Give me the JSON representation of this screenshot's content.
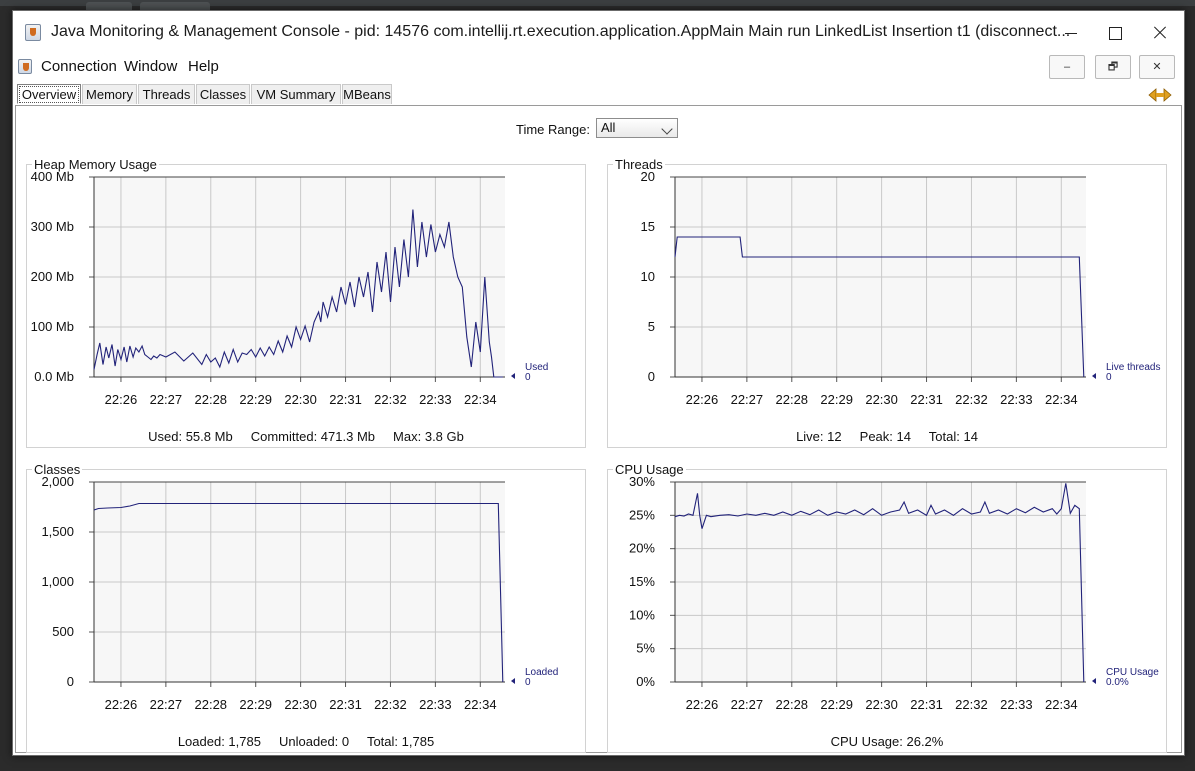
{
  "window": {
    "title": "Java Monitoring & Management Console - pid: 14576 com.intellij.rt.execution.application.AppMain Main run LinkedList Insertion t1 (disconnect...",
    "minimize_label": "–",
    "maximize_label": "□",
    "close_label": "✕"
  },
  "menu": {
    "items": [
      "Connection",
      "Window",
      "Help"
    ]
  },
  "inner_controls": {
    "minimize": "–",
    "restore": "🗗",
    "close": "✕"
  },
  "tabs": [
    {
      "label": "Overview",
      "active": true
    },
    {
      "label": "Memory",
      "active": false
    },
    {
      "label": "Threads",
      "active": false
    },
    {
      "label": "Classes",
      "active": false
    },
    {
      "label": "VM Summary",
      "active": false
    },
    {
      "label": "MBeans",
      "active": false
    }
  ],
  "time_range": {
    "label": "Time Range:",
    "value": "All"
  },
  "panels": {
    "heap": {
      "title": "Heap Memory Usage",
      "footer": "Used: 55.8 Mb     Committed: 471.3 Mb     Max: 3.8 Gb"
    },
    "threads": {
      "title": "Threads",
      "footer": "Live: 12     Peak: 14     Total: 14"
    },
    "classes": {
      "title": "Classes",
      "footer": "Loaded: 1,785     Unloaded: 0     Total: 1,785"
    },
    "cpu": {
      "title": "CPU Usage",
      "footer": "CPU Usage: 26.2%"
    }
  },
  "colors": {
    "line": "#22237a",
    "grid": "#c8c8c8",
    "plot_bg": "#f7f7f7"
  },
  "chart_data": [
    {
      "id": "heap",
      "type": "line",
      "title": "Heap Memory Usage",
      "xlabels": [
        "22:26",
        "22:27",
        "22:28",
        "22:29",
        "22:30",
        "22:31",
        "22:32",
        "22:33",
        "22:34"
      ],
      "ylabels": [
        "0.0 Mb",
        "100 Mb",
        "200 Mb",
        "300 Mb",
        "400 Mb"
      ],
      "ylim": [
        0,
        400
      ],
      "legend": {
        "name": "Used",
        "value": "0"
      },
      "x": [
        25.4,
        25.47,
        25.53,
        25.6,
        25.67,
        25.73,
        25.8,
        25.87,
        25.93,
        26.0,
        26.07,
        26.13,
        26.2,
        26.27,
        26.33,
        26.4,
        26.47,
        26.53,
        26.6,
        26.67,
        26.73,
        26.8,
        26.87,
        27.0,
        27.2,
        27.4,
        27.6,
        27.8,
        27.9,
        28.0,
        28.1,
        28.2,
        28.3,
        28.4,
        28.5,
        28.6,
        28.7,
        28.8,
        28.9,
        29.0,
        29.1,
        29.2,
        29.3,
        29.4,
        29.5,
        29.6,
        29.7,
        29.8,
        29.9,
        30.0,
        30.1,
        30.2,
        30.3,
        30.4,
        30.45,
        30.5,
        30.6,
        30.7,
        30.8,
        30.9,
        31.0,
        31.1,
        31.2,
        31.3,
        31.4,
        31.5,
        31.6,
        31.7,
        31.8,
        31.9,
        32.0,
        32.1,
        32.2,
        32.3,
        32.4,
        32.5,
        32.6,
        32.7,
        32.8,
        32.9,
        33.0,
        33.1,
        33.2,
        33.3,
        33.4,
        33.5,
        33.6,
        33.7,
        33.8,
        33.9,
        34.0,
        34.1,
        34.2,
        34.25,
        34.3,
        34.35,
        34.4,
        34.45,
        34.5
      ],
      "y": [
        15,
        45,
        68,
        25,
        60,
        38,
        65,
        22,
        55,
        35,
        60,
        30,
        62,
        40,
        58,
        50,
        62,
        45,
        40,
        35,
        42,
        38,
        45,
        40,
        50,
        32,
        48,
        25,
        45,
        30,
        38,
        20,
        50,
        28,
        55,
        30,
        48,
        45,
        55,
        40,
        58,
        42,
        60,
        45,
        72,
        50,
        82,
        60,
        100,
        75,
        102,
        70,
        110,
        130,
        110,
        150,
        120,
        160,
        130,
        180,
        145,
        190,
        140,
        200,
        160,
        210,
        130,
        230,
        170,
        250,
        150,
        260,
        180,
        275,
        200,
        335,
        220,
        310,
        240,
        305,
        250,
        285,
        260,
        310,
        240,
        200,
        180,
        80,
        20,
        110,
        50,
        200,
        70,
        40,
        0,
        0,
        0,
        0,
        0
      ]
    },
    {
      "id": "threads",
      "type": "line",
      "title": "Threads",
      "xlabels": [
        "22:26",
        "22:27",
        "22:28",
        "22:29",
        "22:30",
        "22:31",
        "22:32",
        "22:33",
        "22:34"
      ],
      "ylabels": [
        "0",
        "5",
        "10",
        "15",
        "20"
      ],
      "ylim": [
        0,
        20
      ],
      "legend": {
        "name": "Live threads",
        "value": "0"
      },
      "x": [
        25.4,
        25.45,
        26.85,
        26.9,
        34.4,
        34.5
      ],
      "y": [
        12,
        14,
        14,
        12,
        12,
        0
      ]
    },
    {
      "id": "classes",
      "type": "line",
      "title": "Classes",
      "xlabels": [
        "22:26",
        "22:27",
        "22:28",
        "22:29",
        "22:30",
        "22:31",
        "22:32",
        "22:33",
        "22:34"
      ],
      "ylabels": [
        "0",
        "500",
        "1,000",
        "1,500",
        "2,000"
      ],
      "ylim": [
        0,
        2000
      ],
      "legend": {
        "name": "Loaded",
        "value": "0"
      },
      "x": [
        25.4,
        25.5,
        25.7,
        26.0,
        26.2,
        26.4,
        30.0,
        34.4,
        34.5
      ],
      "y": [
        1720,
        1735,
        1740,
        1745,
        1760,
        1785,
        1785,
        1785,
        0
      ]
    },
    {
      "id": "cpu",
      "type": "line",
      "title": "CPU Usage",
      "xlabels": [
        "22:26",
        "22:27",
        "22:28",
        "22:29",
        "22:30",
        "22:31",
        "22:32",
        "22:33",
        "22:34"
      ],
      "ylabels": [
        "0%",
        "5%",
        "10%",
        "15%",
        "20%",
        "25%",
        "30%"
      ],
      "ylim": [
        0,
        30
      ],
      "legend": {
        "name": "CPU Usage",
        "value": "0.0%"
      },
      "x": [
        25.4,
        25.5,
        25.6,
        25.7,
        25.8,
        25.9,
        25.95,
        26.0,
        26.1,
        26.2,
        26.4,
        26.6,
        26.8,
        27.0,
        27.2,
        27.4,
        27.6,
        27.8,
        28.0,
        28.2,
        28.4,
        28.6,
        28.8,
        29.0,
        29.2,
        29.4,
        29.6,
        29.8,
        30.0,
        30.2,
        30.4,
        30.5,
        30.6,
        30.8,
        31.0,
        31.1,
        31.2,
        31.4,
        31.6,
        31.8,
        32.0,
        32.2,
        32.3,
        32.4,
        32.6,
        32.8,
        33.0,
        33.2,
        33.4,
        33.6,
        33.8,
        33.9,
        34.0,
        34.1,
        34.2,
        34.3,
        34.4,
        34.5
      ],
      "y": [
        24.8,
        25.0,
        24.9,
        25.2,
        25.0,
        28.3,
        25.0,
        23.0,
        25.0,
        24.8,
        25.0,
        25.1,
        24.9,
        25.2,
        25.0,
        25.3,
        25.0,
        25.5,
        25.0,
        25.6,
        25.1,
        25.8,
        25.0,
        25.5,
        25.2,
        25.8,
        25.1,
        26.0,
        25.0,
        25.5,
        25.8,
        27.0,
        25.3,
        25.8,
        25.0,
        26.5,
        25.2,
        25.8,
        25.0,
        26.0,
        25.2,
        25.5,
        27.0,
        25.3,
        25.8,
        25.2,
        26.0,
        25.4,
        26.2,
        25.5,
        26.0,
        25.2,
        26.0,
        29.8,
        25.3,
        26.5,
        26.0,
        0
      ]
    }
  ]
}
